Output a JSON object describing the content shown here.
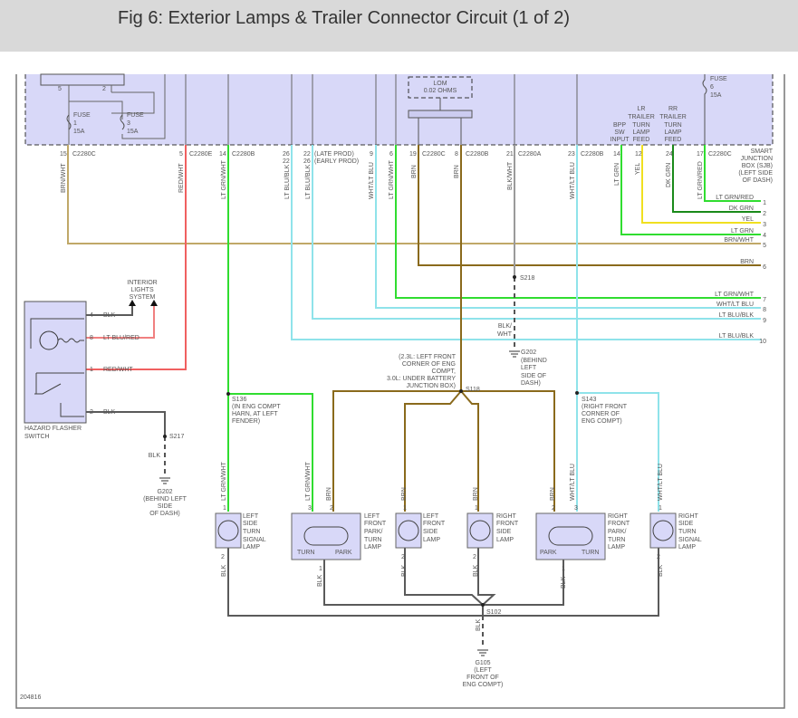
{
  "title": "Fig 6: Exterior Lamps & Trailer Connector Circuit (1 of 2)",
  "figure_id": "204816",
  "colors": {
    "BRN": "#8a6a1c",
    "BRN_WHT": "#c0a868",
    "RED": "#f06060",
    "LT_GRN": "#30dd30",
    "LT_BLU": "#8fe3ea",
    "BLK": "#5a5a5a",
    "YEL": "#f0e020",
    "DK_GRN": "#1a8a1a",
    "GRAY": "#9a9a9a",
    "box": "#d8d8f8"
  },
  "sjb": {
    "label": [
      "SMART",
      "JUNCTION",
      "BOX (SJB)",
      "(LEFT SIDE",
      "OF DASH)"
    ],
    "fuses": [
      {
        "name": "FUSE",
        "num": "1",
        "rating": "15A"
      },
      {
        "name": "FUSE",
        "num": "3",
        "rating": "15A"
      },
      {
        "name": "FUSE",
        "num": "6",
        "rating": "15A"
      }
    ],
    "internal_pins": [
      "5",
      "2"
    ],
    "lom": [
      "LOM",
      "0.02 OHMS"
    ],
    "late_prod": "(LATE PROD)",
    "early_prod": "(EARLY PROD)",
    "bpp": [
      "BPP",
      "SW",
      "INPUT"
    ],
    "lr_trailer": [
      "LR",
      "TRAILER",
      "TURN",
      "LAMP",
      "FEED"
    ],
    "rr_trailer": [
      "RR",
      "TRAILER",
      "TURN",
      "LAMP",
      "FEED"
    ]
  },
  "wires": [
    {
      "pin": "15",
      "connector": "C2280C",
      "color": "BRN/WHT",
      "out": "5"
    },
    {
      "pin": "5",
      "connector": "C2280E",
      "color": "RED/WHT"
    },
    {
      "pin": "14",
      "connector": "C2280B",
      "color": "LT GRN/WHT"
    },
    {
      "pin": "26",
      "pin_alt": "22",
      "color": "LT BLU/BLK",
      "out": "10"
    },
    {
      "pin": "22",
      "pin_alt": "26",
      "color": "LT BLU/BLK",
      "out": "9"
    },
    {
      "pin": "9",
      "color": "WHT/LT BLU",
      "out": "8"
    },
    {
      "pin": "6",
      "color": "LT GRN/WHT",
      "out": "7"
    },
    {
      "pin": "19",
      "connector": "C2280C",
      "color": "BRN",
      "out": "6"
    },
    {
      "pin": "8",
      "connector": "C2280B",
      "color": "BRN"
    },
    {
      "pin": "21",
      "connector": "C2280A",
      "color": "BLK/WHT"
    },
    {
      "pin": "23",
      "connector": "C2280B",
      "color": "WHT/LT BLU"
    },
    {
      "pin": "14",
      "color": "LT GRN",
      "out": "4"
    },
    {
      "pin": "12",
      "color": "YEL",
      "out": "3"
    },
    {
      "pin": "24",
      "color": "DK GRN",
      "out": "2"
    },
    {
      "pin": "17",
      "connector": "C2280C",
      "color": "LT GRN/RED",
      "out": "1"
    }
  ],
  "splices": {
    "s218": "S218",
    "s118": "S118",
    "s118_note": [
      "(2.3L: LEFT FRONT",
      "CORNER OF ENG",
      "COMPT,",
      "3.0L: UNDER BATTERY",
      "JUNCTION BOX)"
    ],
    "s136": "S136",
    "s136_note": [
      "(IN ENG COMPT",
      "HARN, AT LEFT",
      "FENDER)"
    ],
    "s143": "S143",
    "s143_note": [
      "(RIGHT FRONT",
      "CORNER OF",
      "ENG COMPT)"
    ],
    "s217": "S217",
    "s102": "S102"
  },
  "grounds": {
    "g202_a": [
      "G202",
      "(BEHIND",
      "LEFT",
      "SIDE OF",
      "DASH)"
    ],
    "g202_b": [
      "G202",
      "(BEHIND LEFT",
      "SIDE",
      "OF DASH)"
    ],
    "g105": [
      "G105",
      "(LEFT",
      "FRONT OF",
      "ENG COMPT)"
    ],
    "blk_wht": [
      "BLK/",
      "WHT"
    ],
    "blk": "BLK"
  },
  "hazard": {
    "label": [
      "HAZARD FLASHER",
      "SWITCH"
    ],
    "interior": [
      "INTERIOR",
      "LIGHTS",
      "SYSTEM"
    ],
    "pins": [
      {
        "pin": "4",
        "color": "BLK"
      },
      {
        "pin": "8",
        "color": "LT BLU/RED"
      },
      {
        "pin": "1",
        "color": "RED/WHT"
      },
      {
        "pin": "2",
        "color": "BLK"
      }
    ]
  },
  "lamps": [
    {
      "label": [
        "LEFT",
        "SIDE",
        "TURN",
        "SIGNAL",
        "LAMP"
      ],
      "pins_in": [
        "1"
      ],
      "in_colors": [
        "LT GRN/WHT"
      ],
      "pin_out": "2"
    },
    {
      "label": [
        "LEFT",
        "FRONT",
        "PARK/",
        "TURN",
        "LAMP"
      ],
      "pins_in": [
        "3",
        "2"
      ],
      "in_colors": [
        "LT GRN/WHT",
        "BRN"
      ],
      "pin_out": "1",
      "left": "TURN",
      "right": "PARK"
    },
    {
      "label": [
        "LEFT",
        "FRONT",
        "SIDE",
        "LAMP"
      ],
      "pins_in": [
        "1"
      ],
      "in_colors": [
        "BRN"
      ],
      "pin_out": "2"
    },
    {
      "label": [
        "RIGHT",
        "FRONT",
        "SIDE",
        "LAMP"
      ],
      "pins_in": [
        "1"
      ],
      "in_colors": [
        "BRN"
      ],
      "pin_out": "2"
    },
    {
      "label": [
        "RIGHT",
        "FRONT",
        "PARK/",
        "TURN",
        "LAMP"
      ],
      "pins_in": [
        "2",
        "3"
      ],
      "in_colors": [
        "BRN",
        "WHT/LT BLU"
      ],
      "pin_out": "1",
      "left": "PARK",
      "right": "TURN"
    },
    {
      "label": [
        "RIGHT",
        "SIDE",
        "TURN",
        "SIGNAL",
        "LAMP"
      ],
      "pins_in": [
        "1"
      ],
      "in_colors": [
        "WHT/LT BLU"
      ],
      "pin_out": "2"
    }
  ]
}
